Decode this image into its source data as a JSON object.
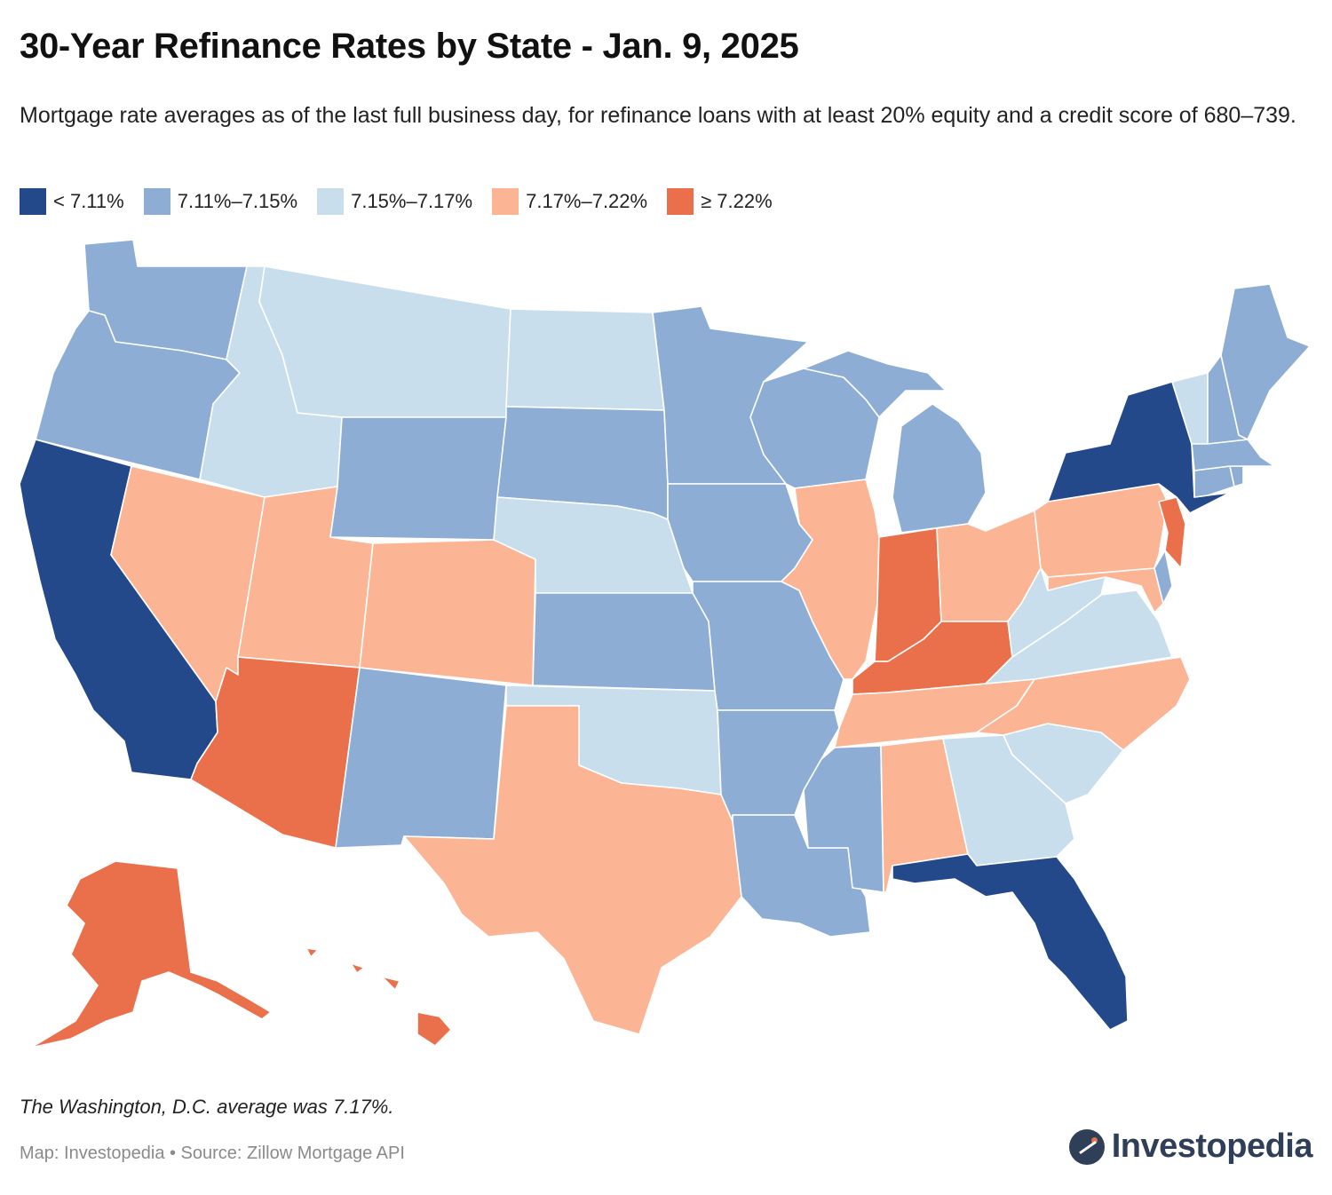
{
  "title": "30-Year Refinance Rates by State - Jan. 9, 2025",
  "subtitle": "Mortgage rate averages as of the last full business day, for refinance loans with at least 20% equity and a credit score of 680–739.",
  "legend": [
    {
      "label": "< 7.11%",
      "color": "#24498a"
    },
    {
      "label": "7.11%–7.15%",
      "color": "#8dadd4"
    },
    {
      "label": "7.15%–7.17%",
      "color": "#c9deec"
    },
    {
      "label": "7.17%–7.22%",
      "color": "#fbb594"
    },
    {
      "label": "≥ 7.22%",
      "color": "#ea704c"
    }
  ],
  "states": [
    {
      "name": "Washington",
      "bin": 1
    },
    {
      "name": "Oregon",
      "bin": 1
    },
    {
      "name": "California",
      "bin": 0
    },
    {
      "name": "Nevada",
      "bin": 3
    },
    {
      "name": "Idaho",
      "bin": 2
    },
    {
      "name": "Montana",
      "bin": 2
    },
    {
      "name": "Wyoming",
      "bin": 1
    },
    {
      "name": "Utah",
      "bin": 3
    },
    {
      "name": "Arizona",
      "bin": 4
    },
    {
      "name": "Colorado",
      "bin": 3
    },
    {
      "name": "New Mexico",
      "bin": 1
    },
    {
      "name": "North Dakota",
      "bin": 2
    },
    {
      "name": "South Dakota",
      "bin": 1
    },
    {
      "name": "Nebraska",
      "bin": 2
    },
    {
      "name": "Kansas",
      "bin": 1
    },
    {
      "name": "Oklahoma",
      "bin": 2
    },
    {
      "name": "Texas",
      "bin": 3
    },
    {
      "name": "Minnesota",
      "bin": 1
    },
    {
      "name": "Iowa",
      "bin": 1
    },
    {
      "name": "Missouri",
      "bin": 1
    },
    {
      "name": "Arkansas",
      "bin": 1
    },
    {
      "name": "Louisiana",
      "bin": 1
    },
    {
      "name": "Wisconsin",
      "bin": 1
    },
    {
      "name": "Illinois",
      "bin": 3
    },
    {
      "name": "Michigan",
      "bin": 1
    },
    {
      "name": "Indiana",
      "bin": 4
    },
    {
      "name": "Ohio",
      "bin": 3
    },
    {
      "name": "Kentucky",
      "bin": 4
    },
    {
      "name": "Tennessee",
      "bin": 3
    },
    {
      "name": "Mississippi",
      "bin": 1
    },
    {
      "name": "Alabama",
      "bin": 3
    },
    {
      "name": "Georgia",
      "bin": 2
    },
    {
      "name": "Florida",
      "bin": 0
    },
    {
      "name": "South Carolina",
      "bin": 2
    },
    {
      "name": "North Carolina",
      "bin": 3
    },
    {
      "name": "Virginia",
      "bin": 2
    },
    {
      "name": "West Virginia",
      "bin": 2
    },
    {
      "name": "Maryland",
      "bin": 3
    },
    {
      "name": "Delaware",
      "bin": 1
    },
    {
      "name": "Pennsylvania",
      "bin": 3
    },
    {
      "name": "New Jersey",
      "bin": 4
    },
    {
      "name": "New York",
      "bin": 0
    },
    {
      "name": "Connecticut",
      "bin": 1
    },
    {
      "name": "Rhode Island",
      "bin": 1
    },
    {
      "name": "Massachusetts",
      "bin": 1
    },
    {
      "name": "Vermont",
      "bin": 2
    },
    {
      "name": "New Hampshire",
      "bin": 1
    },
    {
      "name": "Maine",
      "bin": 1
    },
    {
      "name": "Alaska",
      "bin": 4
    },
    {
      "name": "Hawaii",
      "bin": 4
    }
  ],
  "note": "The Washington, D.C. average was 7.17%.",
  "credit": "Map: Investopedia • Source: Zillow Mortgage API",
  "logo": {
    "text": "Investopedia",
    "icon": "investopedia-logo-icon"
  }
}
